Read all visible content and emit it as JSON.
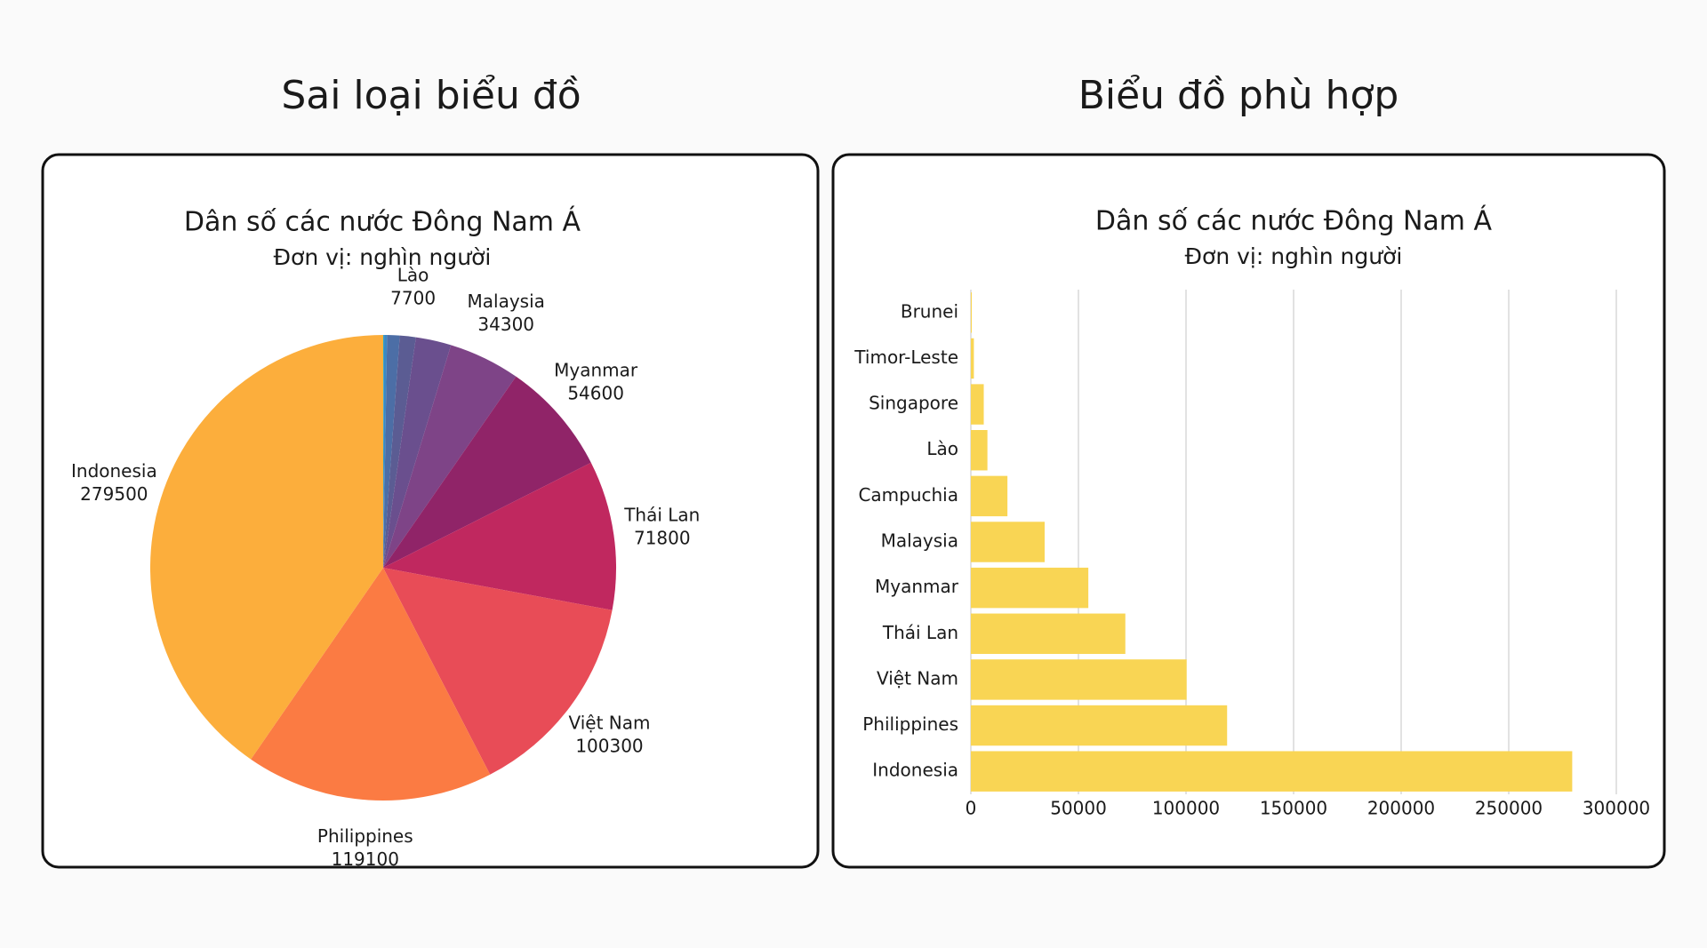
{
  "panels": [
    {
      "heading": "Sai loại biểu đồ"
    },
    {
      "heading": "Biểu đồ phù hợp"
    }
  ],
  "chart_data": [
    {
      "type": "pie",
      "title": "Dân số các nước Đông Nam Á",
      "subtitle": "Đơn vị: nghìn người",
      "categories": [
        null,
        null,
        null,
        "Lào",
        null,
        "Malaysia",
        "Myanmar",
        "Thái Lan",
        "Việt Nam",
        "Philippines",
        "Indonesia"
      ],
      "values": [
        450,
        1400,
        6000,
        7700,
        17000,
        34300,
        54600,
        71800,
        100300,
        119100,
        279500
      ],
      "colors": [
        "#2ea7c9",
        "#3b88c4",
        "#4c6ea6",
        "#5b5c93",
        "#6a4f8e",
        "#7e4487",
        "#902468",
        "#c0285f",
        "#e84c57",
        "#fb7b43",
        "#fcae3c"
      ]
    },
    {
      "type": "bar",
      "orientation": "horizontal",
      "title": "Dân số các nước Đông Nam Á",
      "subtitle": "Đơn vị: nghìn người",
      "categories": [
        "Brunei",
        "Timor-Leste",
        "Singapore",
        "Lào",
        "Campuchia",
        "Malaysia",
        "Myanmar",
        "Thái Lan",
        "Việt Nam",
        "Philippines",
        "Indonesia"
      ],
      "values": [
        450,
        1400,
        6000,
        7700,
        17000,
        34300,
        54600,
        71800,
        100300,
        119100,
        279500
      ],
      "color": "#f9d554",
      "xlim": [
        0,
        300000
      ],
      "xticks": [
        0,
        50000,
        100000,
        150000,
        200000,
        250000,
        300000
      ],
      "grid": true
    }
  ]
}
